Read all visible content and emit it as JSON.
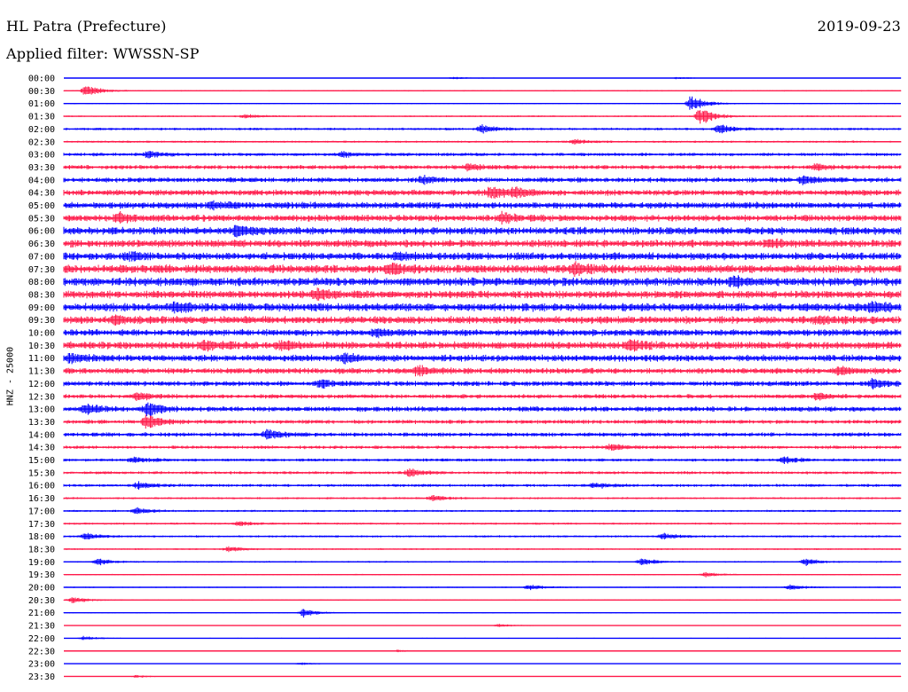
{
  "header": {
    "station": "HL Patra (Prefecture)",
    "date": "2019-09-23",
    "filter": "Applied filter: WWSSN-SP"
  },
  "channel_label": "HNZ - 25000",
  "colors": {
    "line_a": "#0000ff",
    "line_b": "#ff1a4a",
    "background": "#ffffff",
    "text": "#000000"
  },
  "chart_data": {
    "type": "line",
    "chart_kind": "helicorder",
    "x_axis_range_minutes": [
      0,
      30
    ],
    "rows": [
      {
        "time": "00:00",
        "amplitude": 0.1,
        "color": "line_a",
        "events": [
          [
            14,
            0.3
          ],
          [
            22,
            0.2
          ]
        ]
      },
      {
        "time": "00:30",
        "amplitude": 0.15,
        "color": "line_b",
        "events": [
          [
            0.8,
            1.5
          ]
        ]
      },
      {
        "time": "01:00",
        "amplitude": 0.15,
        "color": "line_a",
        "events": [
          [
            22.5,
            2.0
          ]
        ]
      },
      {
        "time": "01:30",
        "amplitude": 0.2,
        "color": "line_b",
        "events": [
          [
            22.8,
            2.2
          ],
          [
            6.5,
            0.5
          ]
        ]
      },
      {
        "time": "02:00",
        "amplitude": 0.3,
        "color": "line_a",
        "events": [
          [
            15.0,
            1.0
          ],
          [
            23.5,
            1.1
          ]
        ]
      },
      {
        "time": "02:30",
        "amplitude": 0.25,
        "color": "line_b",
        "events": [
          [
            18.3,
            0.6
          ]
        ]
      },
      {
        "time": "03:00",
        "amplitude": 0.4,
        "color": "line_a",
        "events": [
          [
            3.0,
            0.9
          ],
          [
            10.0,
            0.6
          ]
        ]
      },
      {
        "time": "03:30",
        "amplitude": 0.5,
        "color": "line_b",
        "events": [
          [
            14.5,
            0.8
          ],
          [
            27.0,
            0.7
          ]
        ]
      },
      {
        "time": "04:00",
        "amplitude": 0.6,
        "color": "line_a",
        "events": [
          [
            12.9,
            0.9
          ],
          [
            26.5,
            1.0
          ]
        ]
      },
      {
        "time": "04:30",
        "amplitude": 0.7,
        "color": "line_b",
        "events": [
          [
            15.3,
            1.3
          ],
          [
            16.2,
            1.1
          ]
        ]
      },
      {
        "time": "05:00",
        "amplitude": 0.8,
        "color": "line_a",
        "events": [
          [
            5.3,
            0.9
          ]
        ]
      },
      {
        "time": "05:30",
        "amplitude": 0.8,
        "color": "line_b",
        "events": [
          [
            2.0,
            1.0
          ],
          [
            15.7,
            1.0
          ]
        ]
      },
      {
        "time": "06:00",
        "amplitude": 0.9,
        "color": "line_a",
        "events": [
          [
            6.2,
            1.3
          ]
        ]
      },
      {
        "time": "06:30",
        "amplitude": 0.9,
        "color": "line_b",
        "events": [
          [
            25.3,
            0.9
          ]
        ]
      },
      {
        "time": "07:00",
        "amplitude": 0.9,
        "color": "line_a",
        "events": [
          [
            2.3,
            0.8
          ],
          [
            12.0,
            0.7
          ]
        ]
      },
      {
        "time": "07:30",
        "amplitude": 1.0,
        "color": "line_b",
        "events": [
          [
            11.7,
            1.0
          ],
          [
            18.3,
            1.2
          ]
        ]
      },
      {
        "time": "08:00",
        "amplitude": 1.0,
        "color": "line_a",
        "events": [
          [
            24.0,
            0.9
          ]
        ]
      },
      {
        "time": "08:30",
        "amplitude": 0.9,
        "color": "line_b",
        "events": [
          [
            9.1,
            1.0
          ]
        ]
      },
      {
        "time": "09:00",
        "amplitude": 1.0,
        "color": "line_a",
        "events": [
          [
            4.0,
            1.1
          ],
          [
            29.0,
            1.0
          ]
        ]
      },
      {
        "time": "09:30",
        "amplitude": 0.9,
        "color": "line_b",
        "events": [
          [
            1.8,
            0.9
          ],
          [
            27.0,
            0.8
          ]
        ]
      },
      {
        "time": "10:00",
        "amplitude": 0.8,
        "color": "line_a",
        "events": [
          [
            11.2,
            0.9
          ]
        ]
      },
      {
        "time": "10:30",
        "amplitude": 0.9,
        "color": "line_b",
        "events": [
          [
            5.0,
            1.0
          ],
          [
            7.8,
            1.0
          ],
          [
            20.3,
            1.0
          ]
        ]
      },
      {
        "time": "11:00",
        "amplitude": 0.8,
        "color": "line_a",
        "events": [
          [
            0.2,
            1.0
          ],
          [
            10.1,
            0.9
          ]
        ]
      },
      {
        "time": "11:30",
        "amplitude": 0.7,
        "color": "line_b",
        "events": [
          [
            12.7,
            1.1
          ],
          [
            27.8,
            1.0
          ]
        ]
      },
      {
        "time": "12:00",
        "amplitude": 0.6,
        "color": "line_a",
        "events": [
          [
            9.2,
            0.9
          ],
          [
            29.0,
            1.0
          ]
        ]
      },
      {
        "time": "12:30",
        "amplitude": 0.5,
        "color": "line_b",
        "events": [
          [
            2.6,
            1.0
          ],
          [
            27.0,
            0.8
          ]
        ]
      },
      {
        "time": "13:00",
        "amplitude": 0.6,
        "color": "line_a",
        "events": [
          [
            0.8,
            1.2
          ],
          [
            3.0,
            1.6
          ]
        ]
      },
      {
        "time": "13:30",
        "amplitude": 0.5,
        "color": "line_b",
        "events": [
          [
            3.0,
            1.8
          ]
        ]
      },
      {
        "time": "14:00",
        "amplitude": 0.5,
        "color": "line_a",
        "events": [
          [
            7.3,
            1.3
          ]
        ]
      },
      {
        "time": "14:30",
        "amplitude": 0.4,
        "color": "line_b",
        "events": [
          [
            19.6,
            0.8
          ]
        ]
      },
      {
        "time": "15:00",
        "amplitude": 0.35,
        "color": "line_a",
        "events": [
          [
            2.5,
            0.7
          ],
          [
            25.8,
            0.8
          ]
        ]
      },
      {
        "time": "15:30",
        "amplitude": 0.35,
        "color": "line_b",
        "events": [
          [
            12.4,
            1.0
          ]
        ]
      },
      {
        "time": "16:00",
        "amplitude": 0.35,
        "color": "line_a",
        "events": [
          [
            2.7,
            0.8
          ],
          [
            19.0,
            0.7
          ]
        ]
      },
      {
        "time": "16:30",
        "amplitude": 0.25,
        "color": "line_b",
        "events": [
          [
            13.2,
            0.7
          ]
        ]
      },
      {
        "time": "17:00",
        "amplitude": 0.25,
        "color": "line_a",
        "events": [
          [
            2.6,
            0.8
          ]
        ]
      },
      {
        "time": "17:30",
        "amplitude": 0.25,
        "color": "line_b",
        "events": [
          [
            6.3,
            0.6
          ]
        ]
      },
      {
        "time": "18:00",
        "amplitude": 0.25,
        "color": "line_a",
        "events": [
          [
            0.8,
            0.9
          ],
          [
            21.5,
            0.8
          ]
        ]
      },
      {
        "time": "18:30",
        "amplitude": 0.2,
        "color": "line_b",
        "events": [
          [
            5.9,
            0.7
          ]
        ]
      },
      {
        "time": "19:00",
        "amplitude": 0.2,
        "color": "line_a",
        "events": [
          [
            1.2,
            0.8
          ],
          [
            20.7,
            0.9
          ],
          [
            26.6,
            0.8
          ]
        ]
      },
      {
        "time": "19:30",
        "amplitude": 0.15,
        "color": "line_b",
        "events": [
          [
            23.0,
            0.6
          ]
        ]
      },
      {
        "time": "20:00",
        "amplitude": 0.15,
        "color": "line_a",
        "events": [
          [
            16.7,
            0.7
          ],
          [
            26.0,
            0.7
          ]
        ]
      },
      {
        "time": "20:30",
        "amplitude": 0.15,
        "color": "line_b",
        "events": [
          [
            0.3,
            0.9
          ]
        ]
      },
      {
        "time": "21:00",
        "amplitude": 0.12,
        "color": "line_a",
        "events": [
          [
            8.6,
            1.0
          ]
        ]
      },
      {
        "time": "21:30",
        "amplitude": 0.1,
        "color": "line_b",
        "events": [
          [
            15.6,
            0.4
          ]
        ]
      },
      {
        "time": "22:00",
        "amplitude": 0.1,
        "color": "line_a",
        "events": [
          [
            0.7,
            0.5
          ]
        ]
      },
      {
        "time": "22:30",
        "amplitude": 0.08,
        "color": "line_b",
        "events": [
          [
            12.0,
            0.3
          ]
        ]
      },
      {
        "time": "23:00",
        "amplitude": 0.08,
        "color": "line_a",
        "events": [
          [
            8.5,
            0.3
          ]
        ]
      },
      {
        "time": "23:30",
        "amplitude": 0.08,
        "color": "line_b",
        "events": [
          [
            2.6,
            0.3
          ]
        ]
      }
    ]
  }
}
